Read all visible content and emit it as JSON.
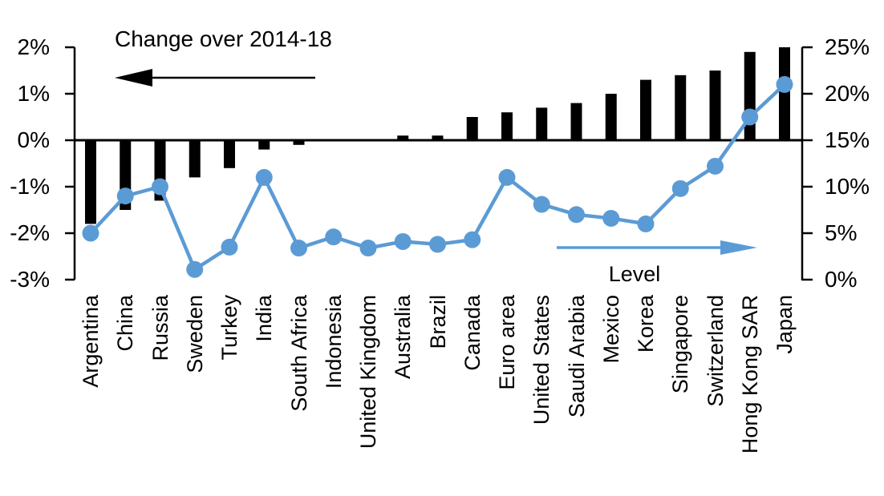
{
  "chart_data": {
    "type": "combo",
    "title": "",
    "categories": [
      "Argentina",
      "China",
      "Russia",
      "Sweden",
      "Turkey",
      "India",
      "South Africa",
      "Indonesia",
      "United Kingdom",
      "Australia",
      "Brazil",
      "Canada",
      "Euro area",
      "United States",
      "Saudi Arabia",
      "Mexico",
      "Korea",
      "Singapore",
      "Switzerland",
      "Hong Kong SAR",
      "Japan"
    ],
    "series": [
      {
        "name": "Change over 2014-18",
        "type": "bar",
        "axis": "left",
        "color": "#000000",
        "values": [
          -1.8,
          -1.5,
          -1.3,
          -0.8,
          -0.6,
          -0.2,
          -0.1,
          0,
          0,
          0.1,
          0.1,
          0.5,
          0.6,
          0.7,
          0.8,
          1.0,
          1.3,
          1.4,
          1.5,
          1.9,
          2.0
        ]
      },
      {
        "name": "Level",
        "type": "line",
        "axis": "right",
        "color": "#5B9BD5",
        "values": [
          5.0,
          9.0,
          10.0,
          1.1,
          3.5,
          11.0,
          3.4,
          4.6,
          3.4,
          4.1,
          3.8,
          4.3,
          11.0,
          8.1,
          7.0,
          6.6,
          6.0,
          9.8,
          12.2,
          17.5,
          21.0
        ]
      }
    ],
    "left_axis": {
      "min": -3,
      "max": 2,
      "tick_step": 1,
      "tick_labels": [
        "2%",
        "1%",
        "0%",
        "-1%",
        "-2%",
        "-3%"
      ],
      "unit": "%"
    },
    "right_axis": {
      "min": 0,
      "max": 25,
      "tick_step": 5,
      "tick_labels": [
        "25%",
        "20%",
        "15%",
        "10%",
        "5%",
        "0%"
      ],
      "unit": "%"
    },
    "annotations": {
      "left_arrow_label": "Change over 2014-18",
      "right_arrow_label": "Level"
    },
    "grid": "zero-line-only",
    "legend": "none"
  }
}
